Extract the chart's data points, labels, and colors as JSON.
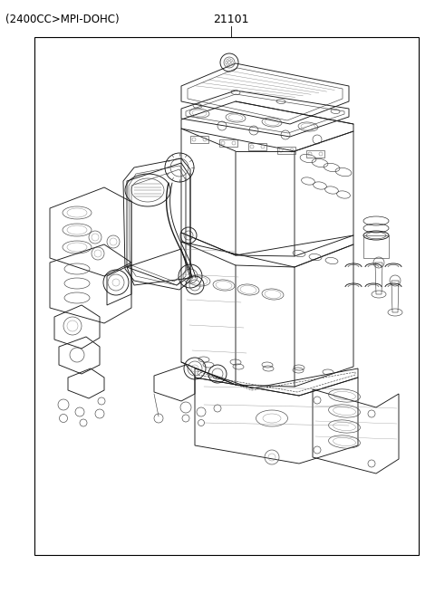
{
  "title": "(2400CC>MPI-DOHC)",
  "part_number": "21101",
  "background_color": "#ffffff",
  "border_color": "#000000",
  "text_color": "#000000",
  "title_fontsize": 8.5,
  "label_fontsize": 9,
  "fig_width": 4.8,
  "fig_height": 6.55,
  "dpi": 100
}
